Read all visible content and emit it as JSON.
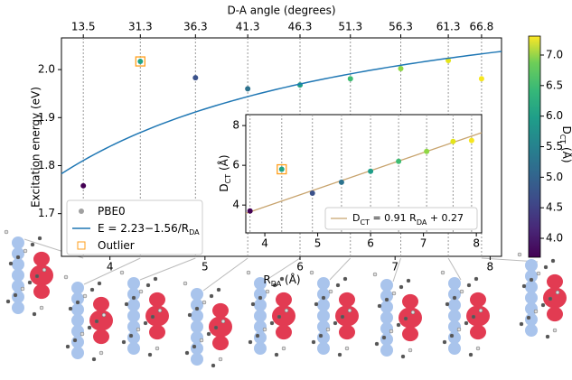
{
  "chart_data": [
    {
      "type": "scatter",
      "x2label": "D-A angle (degrees)",
      "ylabel": "Excitation energy (eV)",
      "xlabel": [
        {
          "text": "R"
        },
        {
          "sub": "DA"
        },
        {
          "text": " (Å)"
        }
      ],
      "xlim": [
        3.49,
        8.12
      ],
      "ylim": [
        1.611,
        2.066
      ],
      "xticks": [
        4,
        5,
        6,
        7,
        8
      ],
      "yticks": [
        1.7,
        1.8,
        1.9,
        {
          "value": 2,
          "label": "2.0"
        }
      ],
      "x2ticks": [
        {
          "value": 3.72,
          "label": "13.5"
        },
        {
          "value": 4.32,
          "label": "31.3"
        },
        {
          "value": 4.9,
          "label": "36.3"
        },
        {
          "value": 5.45,
          "label": "41.3"
        },
        {
          "value": 6.0,
          "label": "46.3"
        },
        {
          "value": 6.53,
          "label": "51.3"
        },
        {
          "value": 7.06,
          "label": "56.3"
        },
        {
          "value": 7.56,
          "label": "61.3"
        },
        {
          "value": 7.91,
          "label": "66.8"
        }
      ],
      "grid": true,
      "legend": "lower left",
      "series": [
        {
          "name": [
            {
              "text": "PBE0"
            }
          ],
          "color": "#a0a0a0",
          "marker": "circle",
          "x": [
            3.72,
            4.32,
            4.9,
            5.45,
            6.0,
            6.53,
            7.06,
            7.56,
            7.91
          ],
          "values": [
            1.758,
            2.017,
            1.983,
            1.96,
            1.968,
            1.981,
            2.002,
            2.019,
            1.981
          ],
          "colors": [
            "#440154",
            "#20a386",
            "#3b528b",
            "#2c728e",
            "#1f9e89",
            "#3fbc73",
            "#8fd744",
            "#e4e419",
            "#f6e620"
          ]
        },
        {
          "name": [
            {
              "text": "E = 2.23−1.56/R"
            },
            {
              "sub": "DA"
            }
          ],
          "color": "#1f77b4",
          "marker": "line",
          "fit": {
            "a": 2.23,
            "b": -1.56
          }
        },
        {
          "name": [
            {
              "text": "Outlier"
            }
          ],
          "color": "#ff9f1c",
          "marker": "square",
          "x": [
            4.32
          ],
          "values": [
            2.017
          ]
        }
      ],
      "colorbar": {
        "label": [
          {
            "text": "D"
          },
          {
            "sub": "CT"
          },
          {
            "text": " (Å)"
          }
        ],
        "lim": [
          3.69,
          7.31
        ],
        "ticks": [
          {
            "value": 4,
            "label": "4.0"
          },
          4.5,
          {
            "value": 5,
            "label": "5.0"
          },
          5.5,
          {
            "value": 6,
            "label": "6.0"
          },
          6.5,
          {
            "value": 7,
            "label": "7.0"
          }
        ]
      }
    },
    {
      "type": "scatter",
      "ylabel": [
        {
          "text": "D"
        },
        {
          "sub": "CT"
        },
        {
          "text": " (Å)"
        }
      ],
      "xlim": [
        3.64,
        8.1
      ],
      "ylim": [
        2.6,
        8.55
      ],
      "xticks": [
        4,
        5,
        6,
        7,
        8
      ],
      "yticks": [
        4,
        6,
        8
      ],
      "grid": true,
      "legend": "lower right",
      "series": [
        {
          "name": [
            {
              "text": "D"
            },
            {
              "sub": "CT"
            },
            {
              "text": " = 0.91 "
            },
            {
              "text": "R"
            },
            {
              "sub": "DA"
            },
            {
              "text": " + 0.27"
            }
          ],
          "color": "#c8a46e",
          "marker": "line",
          "fit": {
            "slope": 0.91,
            "intercept": 0.27
          }
        },
        {
          "x": [
            3.72,
            4.32,
            4.9,
            5.45,
            6.0,
            6.53,
            7.06,
            7.56,
            7.91
          ],
          "values": [
            3.7,
            5.8,
            4.6,
            5.15,
            5.7,
            6.2,
            6.7,
            7.2,
            7.25
          ],
          "colors": [
            "#440154",
            "#20a386",
            "#3b528b",
            "#2c728e",
            "#1f9e89",
            "#3fbc73",
            "#8fd744",
            "#e4e419",
            "#f6e620"
          ]
        },
        {
          "color": "#ff9f1c",
          "marker": "square",
          "x": [
            4.32
          ],
          "values": [
            5.8
          ]
        }
      ]
    }
  ]
}
